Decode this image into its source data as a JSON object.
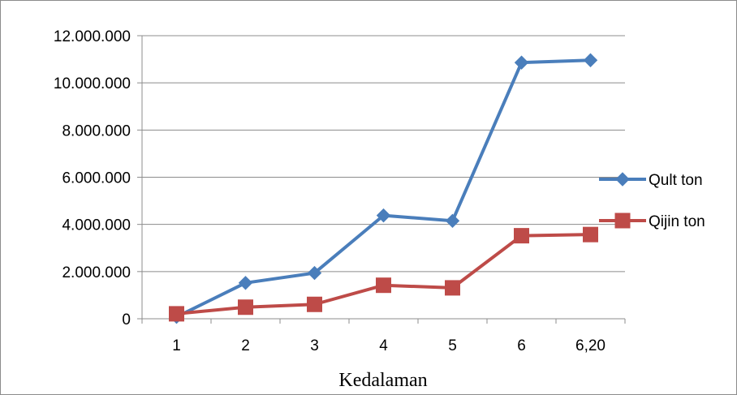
{
  "chart_data": {
    "type": "line",
    "categories": [
      "1",
      "2",
      "3",
      "4",
      "5",
      "6",
      "6,20"
    ],
    "y_tick_labels": [
      "0",
      "2.000.000",
      "4.000.000",
      "6.000.000",
      "8.000.000",
      "10.000.000",
      "12.000.000"
    ],
    "y_ticks": [
      0,
      2000000,
      4000000,
      6000000,
      8000000,
      10000000,
      12000000
    ],
    "ylim": [
      0,
      12000000
    ],
    "xlabel": "Kedalaman",
    "ylabel": "",
    "title": "",
    "grid": "horizontal",
    "legend_position": "right",
    "series": [
      {
        "name": "Qult ton",
        "color": "#4a7ebb",
        "marker": "diamond",
        "values": [
          80000,
          1520000,
          1940000,
          4380000,
          4150000,
          10860000,
          10960000
        ]
      },
      {
        "name": "Qijin ton",
        "color": "#be4b48",
        "marker": "square",
        "values": [
          210000,
          490000,
          610000,
          1420000,
          1310000,
          3520000,
          3570000
        ]
      }
    ]
  }
}
